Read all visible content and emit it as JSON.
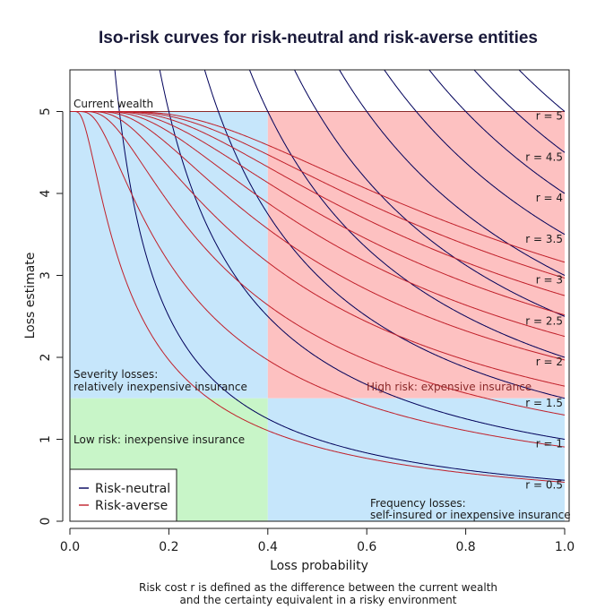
{
  "chart_data": {
    "type": "line",
    "title": "Iso-risk curves for risk-neutral and risk-averse entities",
    "xlabel": "Loss probability",
    "ylabel": "Loss estimate",
    "xlim": [
      0,
      1.0
    ],
    "ylim": [
      0,
      5.5
    ],
    "x_ticks": [
      "0.0",
      "0.2",
      "0.4",
      "0.6",
      "0.8",
      "1.0"
    ],
    "y_ticks": [
      "0",
      "1",
      "2",
      "3",
      "4",
      "5"
    ],
    "current_wealth": 5,
    "current_wealth_label": "Current wealth",
    "risk_costs": [
      0.5,
      1,
      1.5,
      2,
      2.5,
      3,
      3.5,
      4,
      4.5,
      5
    ],
    "curve_labels": [
      "r = 0.5",
      "r = 1",
      "r = 1.5",
      "r = 2",
      "r = 2.5",
      "r = 3",
      "r = 3.5",
      "r = 4",
      "r = 4.5",
      "r = 5"
    ],
    "series": [
      {
        "name": "Risk-neutral",
        "color": "#00005a",
        "relation": "loss_estimate = r / loss_probability"
      },
      {
        "name": "Risk-averse",
        "color": "#c0202a",
        "relation": "loss_estimate = W*(1 - exp(-k*r/p)) with W = 5, k = 0.2"
      }
    ],
    "regions": [
      {
        "name": "severity",
        "x": [
          0,
          0.4
        ],
        "y": [
          1.5,
          5
        ],
        "color": "#c6e6fb"
      },
      {
        "name": "high-risk",
        "x": [
          0.4,
          1.0
        ],
        "y": [
          1.5,
          5
        ],
        "color": "#fdc1c1"
      },
      {
        "name": "low-risk",
        "x": [
          0,
          0.4
        ],
        "y": [
          0,
          1.5
        ],
        "color": "#c8f5c8"
      },
      {
        "name": "frequency",
        "x": [
          0.4,
          1.0
        ],
        "y": [
          0,
          1.5
        ],
        "color": "#c6e6fb"
      }
    ],
    "annotations": {
      "severity_line1": "Severity losses:",
      "severity_line2": "relatively inexpensive insurance",
      "high_risk": "High risk: expensive insurance",
      "low_risk": "Low risk: inexpensive insurance",
      "frequency_line1": "Frequency losses:",
      "frequency_line2": "self-insured or inexpensive insurance"
    },
    "legend": {
      "position": "bottom-left",
      "entries": [
        "Risk-neutral",
        "Risk-averse"
      ]
    },
    "grid": false
  },
  "caption_line1": "Risk cost r is defined as the difference between the current wealth",
  "caption_line2": "and the certainty equivalent in a risky environment"
}
